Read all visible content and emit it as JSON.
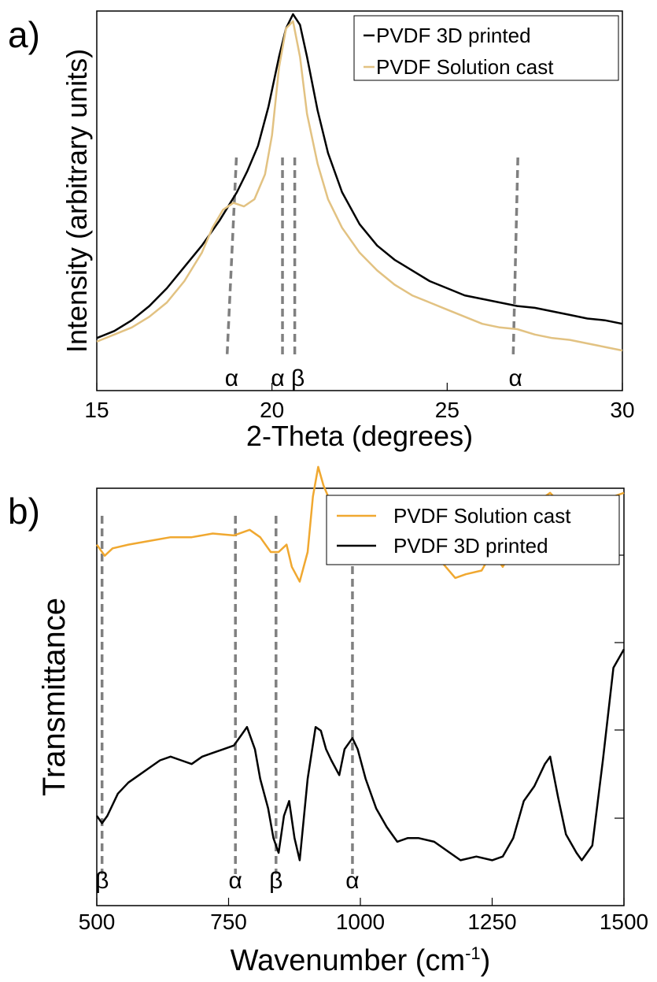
{
  "chart_data": [
    {
      "panel_label": "a)",
      "type": "line",
      "xlabel": "2-Theta (degrees)",
      "ylabel": "Intensity (arbitrary units)",
      "xlim": [
        15,
        30
      ],
      "ylim": [
        0,
        1
      ],
      "xticks": [
        "15",
        "20",
        "25",
        "30"
      ],
      "y_tick_labels": false,
      "grid": false,
      "legend": "top-right",
      "colors": {
        "PVDF 3D printed": "#000000",
        "PVDF Solution cast": "#e2c282",
        "markers": "#808080"
      },
      "series": [
        {
          "name": "PVDF 3D printed",
          "x": [
            15,
            15.5,
            16,
            16.5,
            17,
            17.5,
            18,
            18.5,
            19,
            19.3,
            19.6,
            19.9,
            20.2,
            20.4,
            20.6,
            20.8,
            21,
            21.3,
            21.6,
            22,
            22.5,
            23,
            23.5,
            24,
            24.5,
            25,
            25.5,
            26,
            26.5,
            27,
            27.5,
            28,
            28.5,
            29,
            29.5,
            30
          ],
          "y": [
            0.09,
            0.11,
            0.14,
            0.18,
            0.23,
            0.29,
            0.35,
            0.42,
            0.5,
            0.56,
            0.63,
            0.74,
            0.88,
            0.96,
            1.0,
            0.97,
            0.88,
            0.73,
            0.61,
            0.5,
            0.41,
            0.35,
            0.31,
            0.28,
            0.25,
            0.23,
            0.21,
            0.2,
            0.19,
            0.18,
            0.175,
            0.165,
            0.155,
            0.145,
            0.14,
            0.13
          ]
        },
        {
          "name": "PVDF Solution cast",
          "x": [
            15,
            15.5,
            16,
            16.5,
            17,
            17.5,
            18,
            18.3,
            18.6,
            18.9,
            19.2,
            19.5,
            19.8,
            20,
            20.2,
            20.4,
            20.6,
            20.8,
            21,
            21.3,
            21.6,
            22,
            22.5,
            23,
            23.5,
            24,
            24.5,
            25,
            25.5,
            26,
            26.5,
            27,
            27.5,
            28,
            28.5,
            29,
            29.5,
            30
          ],
          "y": [
            0.08,
            0.1,
            0.12,
            0.15,
            0.19,
            0.25,
            0.33,
            0.4,
            0.45,
            0.47,
            0.46,
            0.48,
            0.55,
            0.66,
            0.85,
            0.96,
            0.98,
            0.88,
            0.72,
            0.58,
            0.48,
            0.4,
            0.33,
            0.28,
            0.24,
            0.21,
            0.19,
            0.17,
            0.15,
            0.13,
            0.12,
            0.115,
            0.1,
            0.09,
            0.085,
            0.075,
            0.065,
            0.055
          ]
        }
      ],
      "markers": [
        {
          "label": "α",
          "x": 18.85
        },
        {
          "label": "α",
          "x": 20.3
        },
        {
          "label": "β",
          "x": 20.65
        },
        {
          "label": "α",
          "x": 26.95
        }
      ]
    },
    {
      "panel_label": "b)",
      "type": "line",
      "xlabel": "Wavenumber (cm",
      "xlabel_sup": "-1",
      "xlabel_close": ")",
      "ylabel": "Transmittance",
      "xlim": [
        500,
        1500
      ],
      "ylim": [
        0,
        1
      ],
      "xticks": [
        "500",
        "750",
        "1000",
        "1250",
        "1500"
      ],
      "y_tick_labels": false,
      "grid": false,
      "legend": "top-right",
      "colors": {
        "PVDF Solution cast": "#f0a830",
        "PVDF 3D printed": "#000000",
        "markers": "#808080"
      },
      "series": [
        {
          "name": "PVDF Solution cast",
          "x": [
            500,
            515,
            530,
            560,
            600,
            640,
            680,
            720,
            760,
            790,
            810,
            830,
            845,
            860,
            870,
            885,
            900,
            910,
            920,
            930,
            945,
            960,
            975,
            990,
            1005,
            1020,
            1040,
            1060,
            1080,
            1100,
            1120,
            1150,
            1180,
            1200,
            1230,
            1250,
            1270,
            1300,
            1320,
            1340,
            1360,
            1380,
            1400,
            1420,
            1440,
            1460,
            1480,
            1500
          ],
          "y": [
            0.72,
            0.69,
            0.71,
            0.72,
            0.73,
            0.74,
            0.74,
            0.75,
            0.745,
            0.76,
            0.74,
            0.7,
            0.7,
            0.72,
            0.66,
            0.62,
            0.7,
            0.85,
            0.93,
            0.88,
            0.83,
            0.77,
            0.83,
            0.84,
            0.8,
            0.74,
            0.72,
            0.7,
            0.76,
            0.7,
            0.71,
            0.68,
            0.63,
            0.64,
            0.65,
            0.7,
            0.66,
            0.73,
            0.8,
            0.84,
            0.86,
            0.83,
            0.8,
            0.78,
            0.79,
            0.82,
            0.85,
            0.86
          ]
        },
        {
          "name": "PVDF 3D printed",
          "x": [
            500,
            510,
            520,
            540,
            560,
            580,
            600,
            620,
            640,
            660,
            680,
            700,
            720,
            740,
            760,
            775,
            785,
            800,
            810,
            825,
            835,
            845,
            855,
            865,
            875,
            885,
            900,
            915,
            925,
            935,
            945,
            960,
            970,
            985,
            995,
            1010,
            1030,
            1050,
            1070,
            1090,
            1110,
            1140,
            1170,
            1190,
            1220,
            1250,
            1270,
            1290,
            1310,
            1330,
            1350,
            1360,
            1375,
            1390,
            1410,
            1420,
            1440,
            1460,
            1480,
            1500
          ],
          "y": [
            0.2,
            0.18,
            0.2,
            0.26,
            0.29,
            0.31,
            0.33,
            0.35,
            0.36,
            0.35,
            0.34,
            0.36,
            0.37,
            0.38,
            0.39,
            0.42,
            0.44,
            0.38,
            0.3,
            0.22,
            0.14,
            0.1,
            0.2,
            0.24,
            0.14,
            0.08,
            0.3,
            0.44,
            0.43,
            0.38,
            0.35,
            0.31,
            0.38,
            0.41,
            0.38,
            0.3,
            0.22,
            0.17,
            0.13,
            0.14,
            0.14,
            0.13,
            0.1,
            0.08,
            0.09,
            0.08,
            0.09,
            0.14,
            0.24,
            0.28,
            0.34,
            0.36,
            0.25,
            0.15,
            0.1,
            0.08,
            0.12,
            0.35,
            0.6,
            0.65
          ]
        }
      ],
      "markers": [
        {
          "label": "β",
          "x": 510
        },
        {
          "label": "α",
          "x": 763
        },
        {
          "label": "β",
          "x": 840
        },
        {
          "label": "α",
          "x": 985
        }
      ]
    }
  ]
}
